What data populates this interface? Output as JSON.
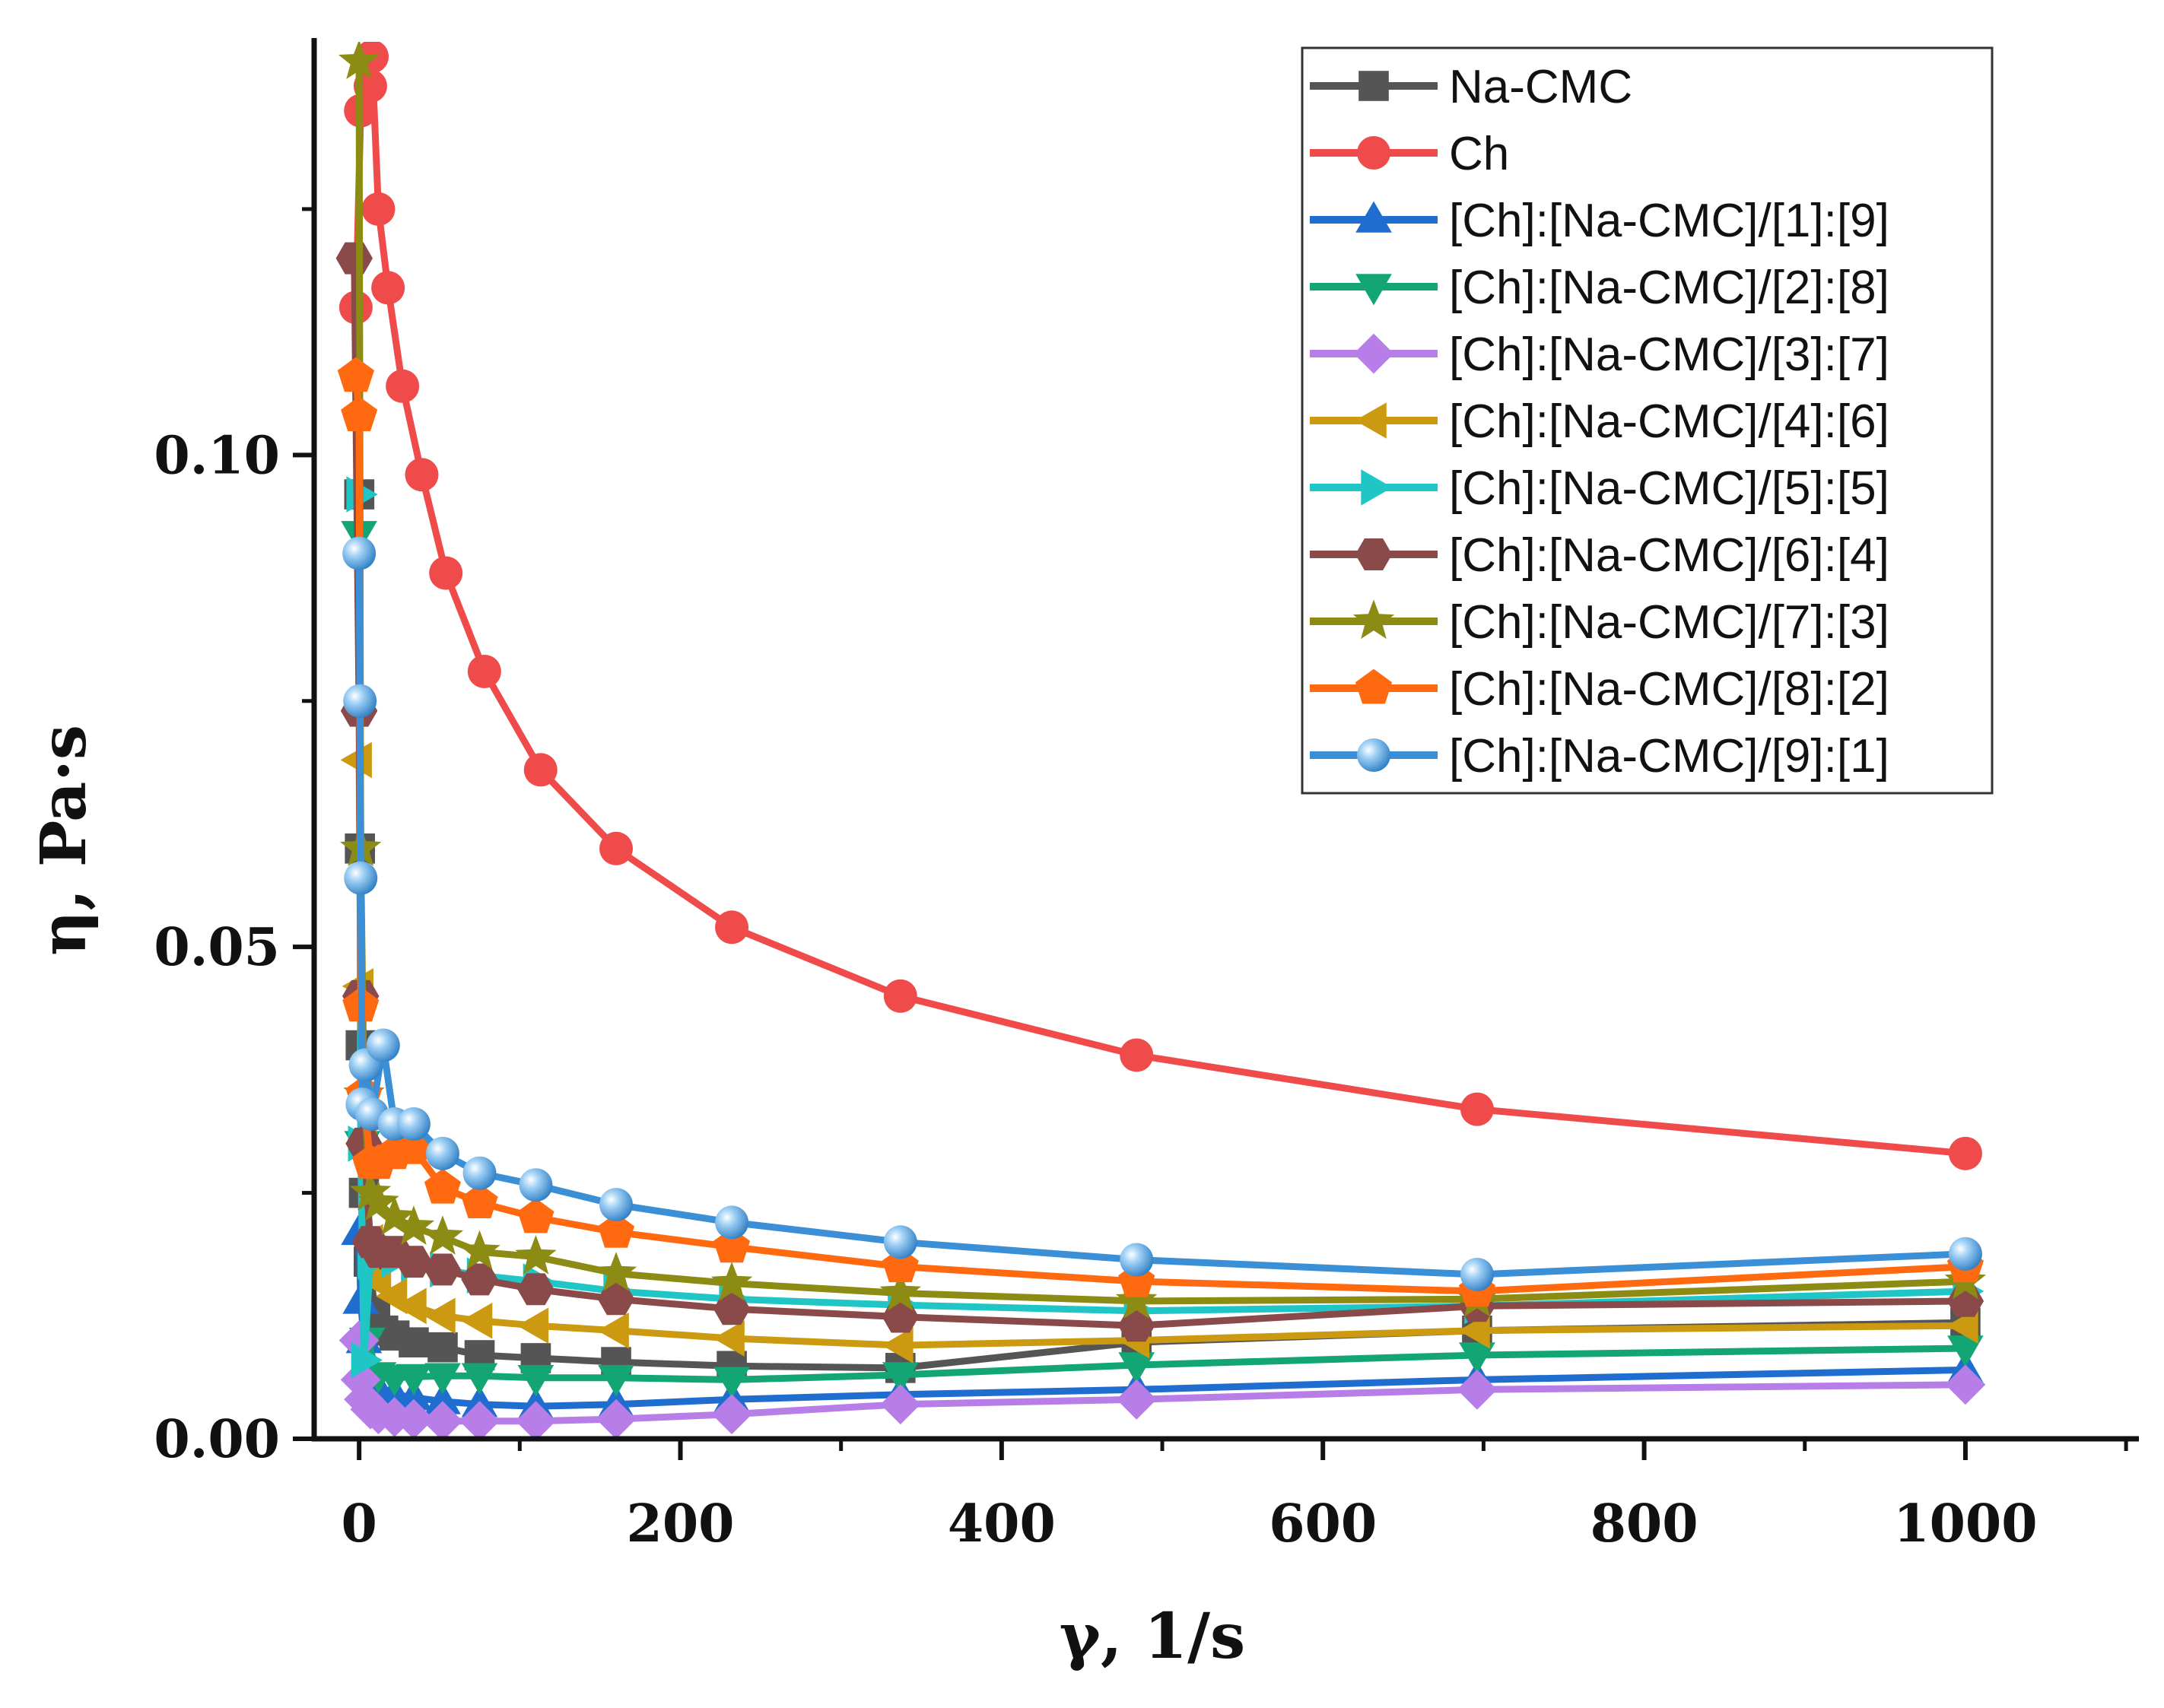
{
  "chart_data": {
    "type": "line",
    "title": "",
    "xlabel": "γ, 1/s",
    "ylabel": "η, Pa·s",
    "xlim": [
      -28,
      1108
    ],
    "ylim": [
      0,
      0.142
    ],
    "x_ticks": [
      "0",
      "200",
      "400",
      "600",
      "800",
      "1000"
    ],
    "y_ticks": [
      "0.00",
      "0.05",
      "0.10"
    ],
    "legend_position": "top-right",
    "series": [
      {
        "name": "Na-CMC",
        "color": "#555555",
        "marker": "square",
        "points": [
          [
            0.1,
            0.096
          ],
          [
            0.5,
            0.06
          ],
          [
            1,
            0.04
          ],
          [
            3,
            0.025
          ],
          [
            6,
            0.018
          ],
          [
            10,
            0.013
          ],
          [
            15,
            0.011
          ],
          [
            22,
            0.0105
          ],
          [
            34,
            0.0098
          ],
          [
            52,
            0.0093
          ],
          [
            75,
            0.0085
          ],
          [
            110,
            0.0082
          ],
          [
            160,
            0.0078
          ],
          [
            232,
            0.0074
          ],
          [
            337,
            0.0072
          ],
          [
            484,
            0.0098
          ],
          [
            696,
            0.011
          ],
          [
            1000,
            0.0118
          ]
        ]
      },
      {
        "name": "Ch",
        "color": "#ef4b4b",
        "marker": "circle",
        "points": [
          [
            -2,
            0.115
          ],
          [
            1,
            0.135
          ],
          [
            7,
            0.1375
          ],
          [
            8,
            0.1405
          ],
          [
            12,
            0.125
          ],
          [
            18,
            0.117
          ],
          [
            27,
            0.107
          ],
          [
            39,
            0.098
          ],
          [
            54,
            0.088
          ],
          [
            78,
            0.078
          ],
          [
            113,
            0.068
          ],
          [
            160,
            0.06
          ],
          [
            232,
            0.052
          ],
          [
            337,
            0.045
          ],
          [
            484,
            0.039
          ],
          [
            696,
            0.0335
          ],
          [
            1000,
            0.029
          ]
        ]
      },
      {
        "name": "[Ch]:[Na-CMC]/[1]:[9]",
        "color": "#1f6ecf",
        "marker": "triangle-up",
        "points": [
          [
            0,
            0.021
          ],
          [
            1,
            0.014
          ],
          [
            3,
            0.01
          ],
          [
            7,
            0.006
          ],
          [
            12,
            0.005
          ],
          [
            22,
            0.0045
          ],
          [
            34,
            0.0042
          ],
          [
            52,
            0.0038
          ],
          [
            75,
            0.0035
          ],
          [
            110,
            0.0033
          ],
          [
            160,
            0.0035
          ],
          [
            232,
            0.004
          ],
          [
            337,
            0.0045
          ],
          [
            484,
            0.005
          ],
          [
            696,
            0.006
          ],
          [
            1000,
            0.007
          ]
        ]
      },
      {
        "name": "[Ch]:[Na-CMC]/[2]:[8]",
        "color": "#14a574",
        "marker": "triangle-down",
        "points": [
          [
            0,
            0.092
          ],
          [
            2,
            0.03
          ],
          [
            5,
            0.01
          ],
          [
            12,
            0.0065
          ],
          [
            22,
            0.0062
          ],
          [
            34,
            0.0063
          ],
          [
            52,
            0.0064
          ],
          [
            75,
            0.0064
          ],
          [
            110,
            0.0062
          ],
          [
            160,
            0.0062
          ],
          [
            232,
            0.006
          ],
          [
            337,
            0.0065
          ],
          [
            484,
            0.0075
          ],
          [
            696,
            0.0085
          ],
          [
            1000,
            0.0092
          ]
        ]
      },
      {
        "name": "[Ch]:[Na-CMC]/[3]:[7]",
        "color": "#b77ee8",
        "marker": "diamond",
        "points": [
          [
            0,
            0.01
          ],
          [
            1,
            0.006
          ],
          [
            3,
            0.004
          ],
          [
            7,
            0.003
          ],
          [
            12,
            0.0025
          ],
          [
            22,
            0.0022
          ],
          [
            34,
            0.002
          ],
          [
            52,
            0.0018
          ],
          [
            75,
            0.0018
          ],
          [
            110,
            0.0018
          ],
          [
            160,
            0.002
          ],
          [
            232,
            0.0025
          ],
          [
            337,
            0.0035
          ],
          [
            484,
            0.004
          ],
          [
            696,
            0.005
          ],
          [
            1000,
            0.0055
          ]
        ]
      },
      {
        "name": "[Ch]:[Na-CMC]/[4]:[6]",
        "color": "#cc9a10",
        "marker": "triangle-left",
        "points": [
          [
            0,
            0.069
          ],
          [
            1,
            0.046
          ],
          [
            3,
            0.03
          ],
          [
            7,
            0.02
          ],
          [
            12,
            0.016
          ],
          [
            22,
            0.0145
          ],
          [
            34,
            0.0135
          ],
          [
            52,
            0.0125
          ],
          [
            75,
            0.012
          ],
          [
            110,
            0.0115
          ],
          [
            160,
            0.011
          ],
          [
            232,
            0.0102
          ],
          [
            337,
            0.0095
          ],
          [
            484,
            0.01
          ],
          [
            696,
            0.011
          ],
          [
            1000,
            0.0115
          ]
        ]
      },
      {
        "name": "[Ch]:[Na-CMC]/[5]:[5]",
        "color": "#20c6c6",
        "marker": "triangle-right",
        "points": [
          [
            0,
            0.096
          ],
          [
            1,
            0.03
          ],
          [
            3,
            0.008
          ],
          [
            7,
            0.018
          ],
          [
            12,
            0.0185
          ],
          [
            22,
            0.0182
          ],
          [
            34,
            0.0178
          ],
          [
            52,
            0.0172
          ],
          [
            75,
            0.0166
          ],
          [
            110,
            0.016
          ],
          [
            160,
            0.015
          ],
          [
            232,
            0.0142
          ],
          [
            337,
            0.0136
          ],
          [
            484,
            0.013
          ],
          [
            696,
            0.0135
          ],
          [
            1000,
            0.015
          ]
        ]
      },
      {
        "name": "[Ch]:[Na-CMC]/[6]:[4]",
        "color": "#8a4a4a",
        "marker": "hexagon",
        "points": [
          [
            -3,
            0.12
          ],
          [
            0,
            0.074
          ],
          [
            1,
            0.045
          ],
          [
            3,
            0.03
          ],
          [
            7,
            0.02
          ],
          [
            12,
            0.019
          ],
          [
            22,
            0.019
          ],
          [
            34,
            0.018
          ],
          [
            52,
            0.0172
          ],
          [
            75,
            0.0162
          ],
          [
            110,
            0.0152
          ],
          [
            160,
            0.0142
          ],
          [
            232,
            0.0132
          ],
          [
            337,
            0.0124
          ],
          [
            484,
            0.0115
          ],
          [
            696,
            0.0135
          ],
          [
            1000,
            0.014
          ]
        ]
      },
      {
        "name": "[Ch]:[Na-CMC]/[7]:[3]",
        "color": "#8c8c14",
        "marker": "star",
        "points": [
          [
            0,
            0.14
          ],
          [
            1,
            0.06
          ],
          [
            3,
            0.035
          ],
          [
            7,
            0.025
          ],
          [
            12,
            0.024
          ],
          [
            22,
            0.0225
          ],
          [
            34,
            0.0215
          ],
          [
            52,
            0.0205
          ],
          [
            75,
            0.019
          ],
          [
            110,
            0.0185
          ],
          [
            160,
            0.0168
          ],
          [
            232,
            0.0158
          ],
          [
            337,
            0.0148
          ],
          [
            484,
            0.014
          ],
          [
            696,
            0.0142
          ],
          [
            1000,
            0.016
          ]
        ]
      },
      {
        "name": "[Ch]:[Na-CMC]/[8]:[2]",
        "color": "#ff6a10",
        "marker": "pentagon",
        "points": [
          [
            -2,
            0.108
          ],
          [
            0,
            0.104
          ],
          [
            1,
            0.044
          ],
          [
            3,
            0.035
          ],
          [
            7,
            0.028
          ],
          [
            12,
            0.028
          ],
          [
            22,
            0.029
          ],
          [
            34,
            0.0295
          ],
          [
            52,
            0.0255
          ],
          [
            75,
            0.024
          ],
          [
            110,
            0.0225
          ],
          [
            160,
            0.021
          ],
          [
            232,
            0.0195
          ],
          [
            337,
            0.0175
          ],
          [
            484,
            0.016
          ],
          [
            696,
            0.015
          ],
          [
            1000,
            0.0175
          ]
        ]
      },
      {
        "name": "[Ch]:[Na-CMC]/[9]:[1]",
        "color": "#3b8fd6",
        "marker": "sphere",
        "points": [
          [
            0,
            0.09
          ],
          [
            0.5,
            0.075
          ],
          [
            1,
            0.057
          ],
          [
            2,
            0.034
          ],
          [
            4,
            0.038
          ],
          [
            8,
            0.033
          ],
          [
            15,
            0.04
          ],
          [
            22,
            0.032
          ],
          [
            34,
            0.032
          ],
          [
            52,
            0.029
          ],
          [
            75,
            0.027
          ],
          [
            110,
            0.0258
          ],
          [
            160,
            0.0238
          ],
          [
            232,
            0.022
          ],
          [
            337,
            0.02
          ],
          [
            484,
            0.0182
          ],
          [
            696,
            0.0167
          ],
          [
            1000,
            0.0188
          ]
        ]
      }
    ]
  }
}
